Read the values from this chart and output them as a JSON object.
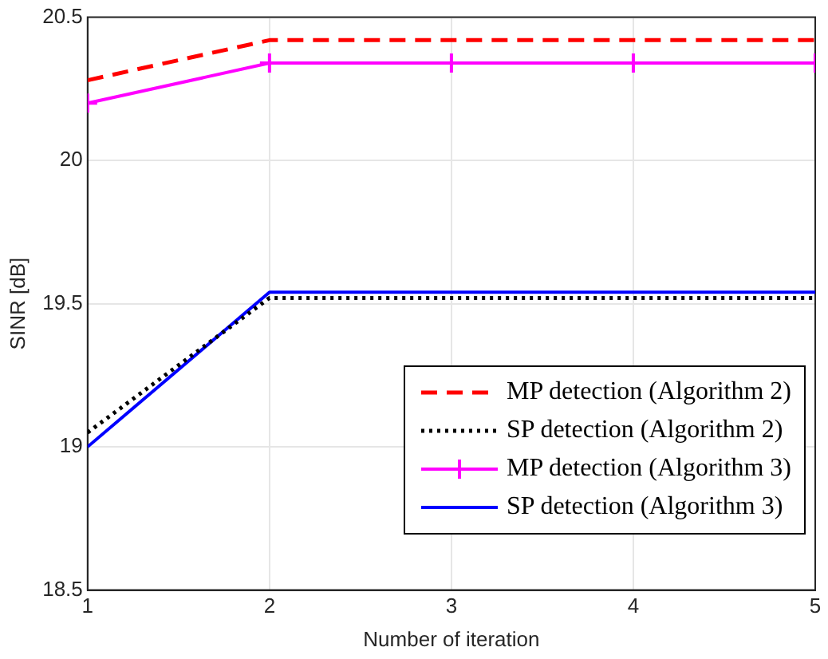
{
  "chart_data": {
    "type": "line",
    "xlabel": "Number of iteration",
    "ylabel": "SINR [dB]",
    "x": [
      1,
      2,
      3,
      4,
      5
    ],
    "xlim": [
      1,
      5
    ],
    "xticks": [
      1,
      2,
      3,
      4,
      5
    ],
    "ylim": [
      18.5,
      20.5
    ],
    "yticks": [
      18.5,
      19,
      19.5,
      20,
      20.5
    ],
    "grid": true,
    "legend": "bottom right",
    "series": [
      {
        "name": "MP detection (Algorithm 2)",
        "color": "#ff0000",
        "line_style": "dashed",
        "marker": "none",
        "values": [
          20.28,
          20.42,
          20.42,
          20.42,
          20.42
        ]
      },
      {
        "name": "SP detection (Algorithm 2)",
        "color": "#000000",
        "line_style": "dotted",
        "marker": "none",
        "values": [
          19.05,
          19.52,
          19.52,
          19.52,
          19.52
        ]
      },
      {
        "name": "MP detection (Algorithm 3)",
        "color": "#ff00ff",
        "line_style": "solid",
        "marker": "cross",
        "values": [
          20.2,
          20.34,
          20.34,
          20.34,
          20.34
        ]
      },
      {
        "name": "SP detection (Algorithm 3)",
        "color": "#0000ff",
        "line_style": "solid",
        "marker": "none",
        "values": [
          19.0,
          19.54,
          19.54,
          19.54,
          19.54
        ]
      }
    ]
  }
}
